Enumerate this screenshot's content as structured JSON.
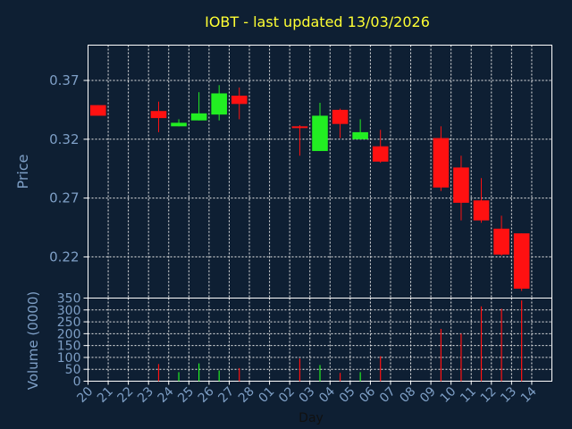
{
  "chart_data": [
    {
      "type": "candlestick",
      "title": "IOBT - last updated 13/03/2026",
      "xlabel": "Day",
      "ylabel": "Price",
      "ylim": [
        0.185,
        0.4
      ],
      "yticks": [
        0.22,
        0.27,
        0.32,
        0.37
      ],
      "ytick_labels": [
        "0.22",
        "0.27",
        "0.32",
        "0.37"
      ],
      "grid": true,
      "colors": {
        "up": "#22ee22",
        "down": "#ff1111",
        "background": "#0e1f33",
        "title": "#ffff33",
        "labels": "#7e9fc6"
      },
      "categories": [
        "20",
        "21",
        "22",
        "23",
        "24",
        "25",
        "26",
        "27",
        "28",
        "01",
        "02",
        "03",
        "04",
        "05",
        "06",
        "07",
        "08",
        "09",
        "10",
        "11",
        "12",
        "13",
        "14"
      ],
      "candles": [
        {
          "x": "20",
          "open": 0.349,
          "high": 0.349,
          "low": 0.34,
          "close": 0.34
        },
        {
          "x": "23",
          "open": 0.344,
          "high": 0.352,
          "low": 0.326,
          "close": 0.338
        },
        {
          "x": "24",
          "open": 0.331,
          "high": 0.337,
          "low": 0.331,
          "close": 0.334
        },
        {
          "x": "25",
          "open": 0.336,
          "high": 0.36,
          "low": 0.336,
          "close": 0.342
        },
        {
          "x": "26",
          "open": 0.341,
          "high": 0.366,
          "low": 0.336,
          "close": 0.359
        },
        {
          "x": "27",
          "open": 0.357,
          "high": 0.364,
          "low": 0.337,
          "close": 0.35
        },
        {
          "x": "02",
          "open": 0.331,
          "high": 0.332,
          "low": 0.306,
          "close": 0.33
        },
        {
          "x": "03",
          "open": 0.31,
          "high": 0.351,
          "low": 0.31,
          "close": 0.34
        },
        {
          "x": "04",
          "open": 0.345,
          "high": 0.346,
          "low": 0.321,
          "close": 0.333
        },
        {
          "x": "05",
          "open": 0.32,
          "high": 0.337,
          "low": 0.32,
          "close": 0.326
        },
        {
          "x": "06",
          "open": 0.314,
          "high": 0.328,
          "low": 0.3,
          "close": 0.301
        },
        {
          "x": "09",
          "open": 0.321,
          "high": 0.331,
          "low": 0.276,
          "close": 0.279
        },
        {
          "x": "10",
          "open": 0.296,
          "high": 0.306,
          "low": 0.251,
          "close": 0.266
        },
        {
          "x": "11",
          "open": 0.268,
          "high": 0.287,
          "low": 0.249,
          "close": 0.251
        },
        {
          "x": "12",
          "open": 0.244,
          "high": 0.255,
          "low": 0.221,
          "close": 0.222
        },
        {
          "x": "13",
          "open": 0.24,
          "high": 0.24,
          "low": 0.191,
          "close": 0.193
        }
      ]
    },
    {
      "type": "bar",
      "ylabel": "Volume (0000)",
      "xlabel": "Day",
      "ylim": [
        0,
        350
      ],
      "yticks": [
        0,
        50,
        100,
        150,
        200,
        250,
        300,
        350
      ],
      "ytick_labels": [
        "0",
        "50",
        "100",
        "150",
        "200",
        "250",
        "300",
        "350"
      ],
      "grid": true,
      "categories": [
        "20",
        "21",
        "22",
        "23",
        "24",
        "25",
        "26",
        "27",
        "28",
        "01",
        "02",
        "03",
        "04",
        "05",
        "06",
        "07",
        "08",
        "09",
        "10",
        "11",
        "12",
        "13",
        "14"
      ],
      "bars": [
        {
          "x": "23",
          "value": 72,
          "direction": "down"
        },
        {
          "x": "24",
          "value": 38,
          "direction": "up"
        },
        {
          "x": "25",
          "value": 75,
          "direction": "up"
        },
        {
          "x": "26",
          "value": 45,
          "direction": "up"
        },
        {
          "x": "27",
          "value": 55,
          "direction": "down"
        },
        {
          "x": "02",
          "value": 95,
          "direction": "down"
        },
        {
          "x": "03",
          "value": 68,
          "direction": "up"
        },
        {
          "x": "04",
          "value": 35,
          "direction": "down"
        },
        {
          "x": "05",
          "value": 38,
          "direction": "up"
        },
        {
          "x": "06",
          "value": 105,
          "direction": "down"
        },
        {
          "x": "09",
          "value": 220,
          "direction": "down"
        },
        {
          "x": "10",
          "value": 200,
          "direction": "down"
        },
        {
          "x": "11",
          "value": 315,
          "direction": "down"
        },
        {
          "x": "12",
          "value": 305,
          "direction": "down"
        },
        {
          "x": "13",
          "value": 340,
          "direction": "down"
        }
      ]
    }
  ]
}
